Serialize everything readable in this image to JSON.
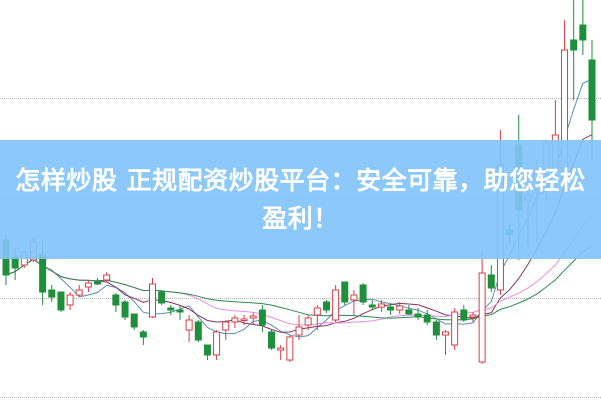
{
  "banner": {
    "title_line1": "怎样炒股 正规配资炒股平台：安全可靠，助您轻松",
    "title_line2": "盈利！",
    "color": "#8cc8fb"
  },
  "chart_data": {
    "type": "candlestick",
    "title": "",
    "xlabel": "",
    "ylabel": "",
    "ylim": [
      0,
      40
    ],
    "grid": true,
    "up_color": "#d0404a",
    "down_color": "#1e8f3a",
    "ma_colors": [
      "#5a8fb0",
      "#8a3060",
      "#e58fe0",
      "#2e8a50"
    ],
    "ohlc": [
      [
        16.0,
        16.5,
        11.5,
        12.5
      ],
      [
        14.3,
        15.2,
        12.0,
        13.2
      ],
      [
        13.5,
        15.0,
        13.2,
        14.8
      ],
      [
        14.0,
        16.2,
        13.8,
        15.8
      ],
      [
        14.5,
        16.0,
        9.5,
        10.8
      ],
      [
        11.0,
        11.5,
        9.8,
        10.3
      ],
      [
        10.8,
        10.8,
        8.8,
        9.0
      ],
      [
        9.5,
        10.8,
        9.0,
        10.5
      ],
      [
        10.5,
        11.5,
        10.3,
        11.0
      ],
      [
        11.3,
        12.0,
        10.8,
        11.7
      ],
      [
        11.8,
        12.2,
        11.5,
        11.6
      ],
      [
        12.0,
        12.8,
        11.8,
        12.5
      ],
      [
        10.5,
        10.7,
        8.8,
        9.5
      ],
      [
        9.8,
        10.0,
        8.0,
        8.3
      ],
      [
        8.6,
        8.6,
        7.0,
        7.3
      ],
      [
        6.8,
        7.0,
        5.5,
        6.3
      ],
      [
        8.3,
        12.2,
        8.2,
        11.6
      ],
      [
        10.8,
        11.0,
        9.5,
        9.7
      ],
      [
        9.2,
        9.5,
        8.5,
        9.0
      ],
      [
        9.0,
        9.5,
        8.0,
        8.8
      ],
      [
        7.0,
        8.5,
        5.8,
        8.0
      ],
      [
        7.8,
        8.0,
        5.8,
        6.0
      ],
      [
        5.5,
        5.5,
        4.0,
        4.5
      ],
      [
        4.5,
        7.0,
        4.0,
        6.8
      ],
      [
        7.0,
        8.0,
        6.0,
        7.8
      ],
      [
        7.8,
        8.5,
        7.2,
        8.2
      ],
      [
        8.0,
        8.5,
        7.5,
        8.1
      ],
      [
        8.2,
        8.7,
        7.5,
        8.4
      ],
      [
        9.0,
        9.5,
        6.8,
        7.5
      ],
      [
        6.8,
        7.0,
        5.0,
        5.2
      ],
      [
        5.0,
        5.5,
        4.0,
        5.2
      ],
      [
        4.0,
        6.5,
        3.8,
        6.3
      ],
      [
        6.5,
        8.5,
        6.0,
        7.3
      ],
      [
        7.5,
        8.5,
        7.0,
        8.2
      ],
      [
        8.5,
        9.5,
        7.0,
        9.2
      ],
      [
        9.8,
        10.0,
        8.7,
        9.0
      ],
      [
        8.0,
        11.5,
        7.8,
        11.0
      ],
      [
        11.8,
        11.8,
        9.5,
        9.8
      ],
      [
        10.0,
        11.0,
        8.5,
        10.5
      ],
      [
        11.5,
        11.7,
        9.5,
        9.8
      ],
      [
        9.5,
        10.0,
        9.0,
        9.3
      ],
      [
        9.3,
        10.0,
        8.8,
        9.6
      ],
      [
        9.3,
        9.6,
        8.5,
        9.0
      ],
      [
        9.0,
        9.8,
        8.6,
        9.4
      ],
      [
        9.0,
        9.5,
        8.5,
        8.6
      ],
      [
        8.6,
        9.2,
        8.0,
        8.3
      ],
      [
        8.5,
        9.0,
        7.5,
        7.8
      ],
      [
        7.8,
        8.0,
        6.0,
        6.5
      ],
      [
        6.5,
        7.0,
        4.5,
        6.8
      ],
      [
        5.5,
        9.2,
        5.0,
        8.8
      ],
      [
        9.0,
        9.5,
        7.8,
        8.0
      ],
      [
        8.3,
        8.8,
        7.8,
        8.5
      ],
      [
        3.8,
        15.0,
        3.6,
        12.7
      ],
      [
        12.5,
        13.5,
        10.8,
        11.2
      ],
      [
        11.0,
        27.0,
        10.5,
        23.5
      ],
      [
        17.0,
        17.5,
        15.5,
        16.5
      ],
      [
        25.5,
        28.5,
        14.0,
        19.0
      ],
      [
        20.0,
        22.0,
        15.5,
        20.5
      ],
      [
        22.0,
        24.0,
        16.0,
        23.0
      ],
      [
        23.0,
        26.0,
        20.0,
        25.8
      ],
      [
        23.0,
        30.0,
        22.0,
        26.5
      ],
      [
        22.0,
        38.0,
        21.0,
        35.0
      ],
      [
        36.0,
        40.0,
        30.0,
        35.0
      ],
      [
        37.5,
        40.0,
        34.5,
        36.0
      ],
      [
        34.0,
        36.0,
        24.0,
        28.0
      ]
    ]
  }
}
